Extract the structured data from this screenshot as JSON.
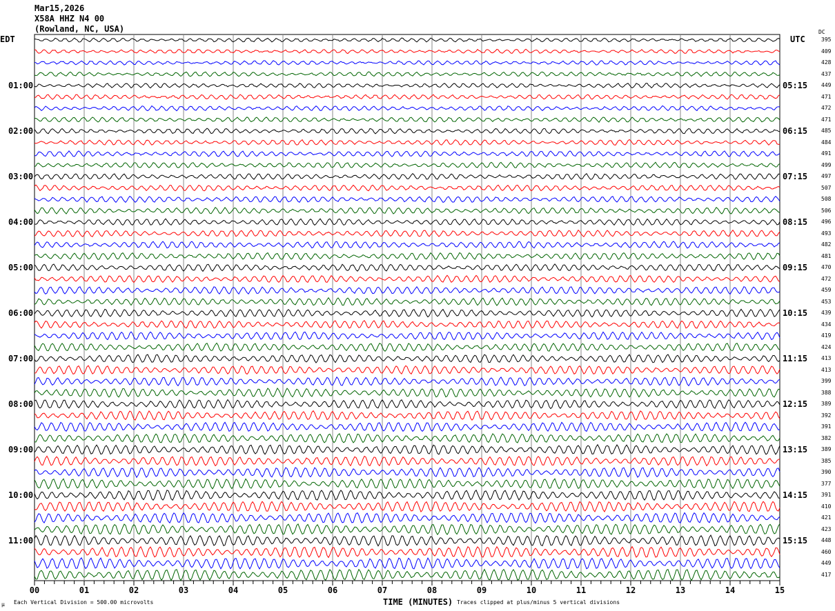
{
  "header": {
    "date": "Mar15,2026",
    "station": "X58A HHZ N4 00",
    "location": "(Rowland, NC, USA)"
  },
  "left_zone": "EDT",
  "right_zone": "UTC",
  "dc_label": "DC",
  "footer": {
    "scale": "Each Vertical Division =  500.00 microvolts",
    "xlabel": "TIME (MINUTES)",
    "clip_note": "Traces clipped at plus/minus 5 vertical divisions",
    "mu": "µ"
  },
  "colors": [
    "#000000",
    "#ff0000",
    "#0000ff",
    "#006400"
  ],
  "chart_data": {
    "type": "line",
    "title": "Mar15,2026 X58A HHZ N4 00 (Rowland, NC, USA)",
    "xlabel": "TIME (MINUTES)",
    "xlim": [
      0,
      15
    ],
    "x_ticks": [
      "00",
      "01",
      "02",
      "03",
      "04",
      "05",
      "06",
      "07",
      "08",
      "09",
      "10",
      "11",
      "12",
      "13",
      "14",
      "15"
    ],
    "traces_per_hour": 4,
    "trace_count": 48,
    "edt_labels": [
      "01:00",
      "02:00",
      "03:00",
      "04:00",
      "05:00",
      "06:00",
      "07:00",
      "08:00",
      "09:00",
      "10:00",
      "11:00"
    ],
    "utc_labels": [
      "05:15",
      "06:15",
      "07:15",
      "08:15",
      "09:15",
      "10:15",
      "11:15",
      "12:15",
      "13:15",
      "14:15",
      "15:15"
    ],
    "dc_offsets": [
      395,
      409,
      428,
      437,
      449,
      471,
      472,
      471,
      485,
      484,
      491,
      499,
      497,
      507,
      508,
      506,
      496,
      493,
      482,
      481,
      470,
      472,
      459,
      453,
      439,
      434,
      419,
      424,
      413,
      413,
      399,
      388,
      389,
      392,
      391,
      382,
      389,
      385,
      390,
      377,
      391,
      410,
      421,
      423,
      448,
      460,
      449,
      417
    ]
  }
}
